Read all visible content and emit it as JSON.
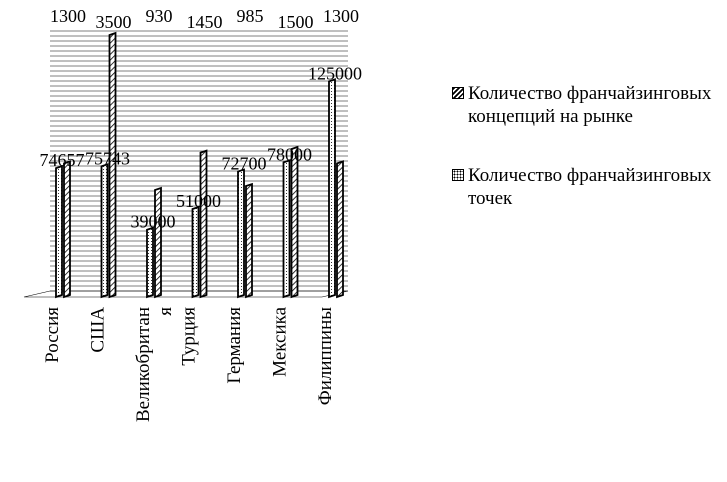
{
  "chart_data": {
    "type": "bar",
    "categories": [
      "Россия",
      "США",
      "Великобритания",
      "Турция",
      "Германия",
      "Мексика",
      "Филиппины"
    ],
    "category_labels": [
      [
        "Россия"
      ],
      [
        "США"
      ],
      [
        "Великобритан",
        "я"
      ],
      [
        "Турция"
      ],
      [
        "Германия"
      ],
      [
        "Мексика"
      ],
      [
        "Филиппины"
      ]
    ],
    "series": [
      {
        "name": "Количество франчайзинговых концепций на рынке",
        "values": [
          1300,
          3500,
          930,
          1450,
          985,
          1500,
          1300
        ],
        "pattern": "hatch"
      },
      {
        "name": "Количество франчайзинговых точек",
        "values": [
          74657,
          75743,
          39000,
          51000,
          72700,
          78000,
          125000
        ],
        "pattern": "dots"
      }
    ],
    "legend_position": "right",
    "colors": {
      "stroke": "#000000",
      "background": "#ffffff"
    }
  }
}
